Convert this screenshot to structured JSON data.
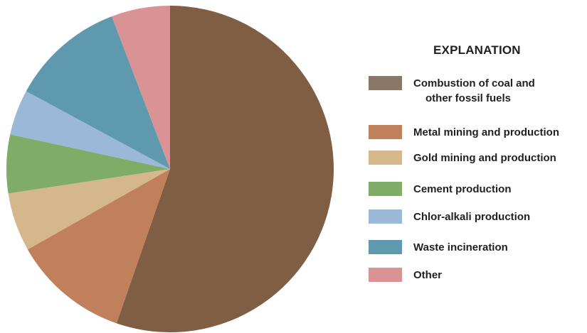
{
  "chart_data": {
    "type": "pie",
    "legend_title": "EXPLANATION",
    "legend_position": "right",
    "start_angle_deg": 0,
    "direction": "clockwise",
    "slices": [
      {
        "label_line1": "Combustion of coal and",
        "label_line2": "other fossil fuels",
        "value": 55.3,
        "color": "#7f5e43",
        "legend_color": "#8b7766"
      },
      {
        "label_line1": "Metal mining and production",
        "label_line2": "",
        "value": 11.5,
        "color": "#bf805b",
        "legend_color": "#bf805b"
      },
      {
        "label_line1": "Gold mining and production",
        "label_line2": "",
        "value": 5.8,
        "color": "#d4b88c",
        "legend_color": "#d4b88c"
      },
      {
        "label_line1": "Cement production",
        "label_line2": "",
        "value": 5.8,
        "color": "#7fac67",
        "legend_color": "#7fac67"
      },
      {
        "label_line1": "Chlor-alkali production",
        "label_line2": "",
        "value": 4.5,
        "color": "#9bb8d9",
        "legend_color": "#9bb8d9"
      },
      {
        "label_line1": "Waste incineration",
        "label_line2": "",
        "value": 11.3,
        "color": "#5f99ad",
        "legend_color": "#5f99ad"
      },
      {
        "label_line1": "Other",
        "label_line2": "",
        "value": 5.8,
        "color": "#d99394",
        "legend_color": "#d99394"
      }
    ]
  }
}
